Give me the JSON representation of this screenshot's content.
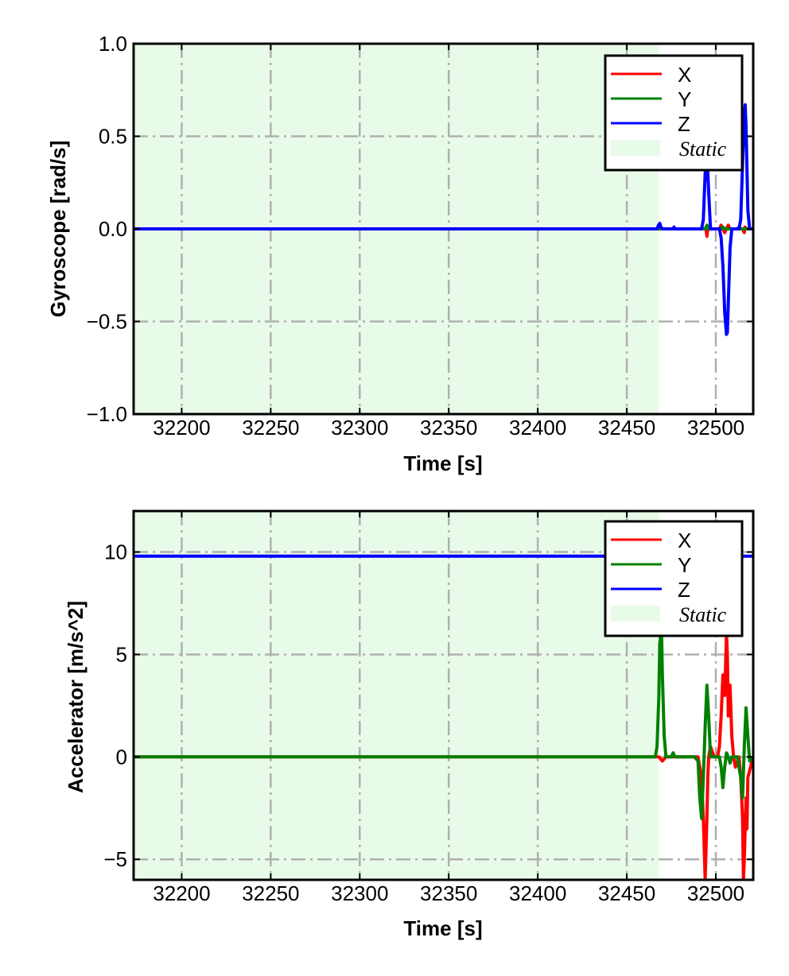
{
  "colors": {
    "x": "#ff0000",
    "y": "#008000",
    "z": "#0000ff",
    "static": "#e8fbe8",
    "grid": "#b0b0b0"
  },
  "legend": {
    "x": "X",
    "y": "Y",
    "z": "Z",
    "static": "Static",
    "placement": "top-right"
  },
  "chart_data": [
    {
      "type": "line",
      "xlabel": "Time [s]",
      "ylabel": "Gyroscope [rad/s]",
      "xlim": [
        32173,
        32521
      ],
      "ylim": [
        -1.0,
        1.0
      ],
      "xticks": [
        32200,
        32250,
        32300,
        32350,
        32400,
        32450,
        32500
      ],
      "xtick_labels": [
        "32200",
        "32250",
        "32300",
        "32350",
        "32400",
        "32450",
        "32500"
      ],
      "yticks": [
        -1.0,
        -0.5,
        0.0,
        0.5,
        1.0
      ],
      "ytick_labels": [
        "−1.0",
        "−0.5",
        "0.0",
        "0.5",
        "1.0"
      ],
      "grid": true,
      "static_region": [
        32173,
        32468
      ],
      "series": [
        {
          "name": "X",
          "x": [
            32173,
            32468,
            32470,
            32494.5,
            32495,
            32495.5,
            32496,
            32502,
            32503,
            32504,
            32505,
            32506,
            32507,
            32508,
            32515,
            32516,
            32516.5,
            32517,
            32521
          ],
          "y": [
            0.0,
            0.0,
            0.0,
            0.0,
            -0.04,
            0.0,
            0.0,
            0.0,
            0.02,
            0.0,
            -0.02,
            0.0,
            0.02,
            0.0,
            0.0,
            -0.02,
            0.01,
            0.0,
            0.0
          ]
        },
        {
          "name": "Y",
          "x": [
            32173,
            32468,
            32494,
            32495,
            32496,
            32503,
            32504,
            32505,
            32512,
            32513,
            32514,
            32521
          ],
          "y": [
            0.0,
            0.0,
            0.0,
            0.02,
            0.0,
            0.0,
            0.01,
            0.0,
            0.0,
            0.01,
            0.0,
            0.0
          ]
        },
        {
          "name": "Z",
          "x": [
            32173,
            32467,
            32467.8,
            32468.5,
            32469.2,
            32470,
            32476,
            32476.5,
            32477,
            32492,
            32493,
            32494,
            32495,
            32496,
            32497,
            32498,
            32502,
            32503,
            32504,
            32505,
            32506,
            32506.5,
            32507,
            32508,
            32509,
            32510,
            32513,
            32514,
            32515,
            32516,
            32516.5,
            32517,
            32518,
            32519,
            32521
          ],
          "y": [
            0.0,
            0.0,
            0.02,
            0.03,
            0.01,
            0.0,
            0.0,
            0.01,
            0.0,
            0.0,
            0.05,
            0.3,
            0.42,
            0.2,
            0.0,
            0.0,
            0.0,
            -0.05,
            -0.2,
            -0.45,
            -0.57,
            -0.56,
            -0.4,
            -0.1,
            0.0,
            0.0,
            0.0,
            0.05,
            0.35,
            0.6,
            0.67,
            0.55,
            0.1,
            0.0,
            0.0
          ]
        }
      ]
    },
    {
      "type": "line",
      "xlabel": "Time [s]",
      "ylabel": "Accelerator [m/s^2]",
      "xlim": [
        32173,
        32521
      ],
      "ylim": [
        -6.0,
        12.0
      ],
      "xticks": [
        32200,
        32250,
        32300,
        32350,
        32400,
        32450,
        32500
      ],
      "xtick_labels": [
        "32200",
        "32250",
        "32300",
        "32350",
        "32400",
        "32450",
        "32500"
      ],
      "yticks": [
        -5,
        0,
        5,
        10
      ],
      "ytick_labels": [
        "−5",
        "0",
        "5",
        "10"
      ],
      "grid": true,
      "static_region": [
        32173,
        32468
      ],
      "series": [
        {
          "name": "X",
          "x": [
            32173,
            32468,
            32470,
            32472,
            32490,
            32492,
            32493,
            32494,
            32495,
            32495.5,
            32496,
            32497,
            32499,
            32501,
            32502,
            32503,
            32504,
            32505,
            32506,
            32506.5,
            32507,
            32508,
            32509,
            32510,
            32511,
            32513,
            32514,
            32515,
            32515.5,
            32516,
            32517,
            32517.5,
            32518,
            32521
          ],
          "y": [
            0.0,
            0.0,
            -0.2,
            0.0,
            0.0,
            -1.0,
            -3.0,
            -6.0,
            -3.0,
            -1.0,
            0.0,
            0.5,
            0.0,
            0.0,
            0.5,
            2.0,
            4.0,
            3.0,
            6.0,
            5.0,
            2.0,
            3.5,
            1.0,
            0.0,
            -0.5,
            0.0,
            -1.0,
            -3.0,
            -6.0,
            -5.0,
            -2.0,
            -3.5,
            -1.0,
            0.0
          ]
        },
        {
          "name": "Y",
          "x": [
            32173,
            32466,
            32467,
            32468,
            32468.5,
            32469.5,
            32470,
            32471,
            32472,
            32475,
            32476,
            32477,
            32480,
            32488,
            32490,
            32491,
            32492,
            32493,
            32494,
            32495,
            32496,
            32497,
            32500,
            32502,
            32503,
            32504,
            32505,
            32506,
            32507,
            32508,
            32509,
            32512,
            32513,
            32514,
            32515,
            32516,
            32517,
            32518,
            32519,
            32521
          ],
          "y": [
            0.0,
            0.0,
            0.5,
            3.0,
            5.5,
            6.3,
            4.0,
            1.0,
            0.0,
            0.0,
            0.2,
            0.0,
            0.0,
            0.0,
            -0.2,
            -2.0,
            -3.0,
            -1.0,
            1.5,
            3.5,
            2.0,
            0.0,
            0.0,
            0.0,
            -0.5,
            -1.5,
            -0.5,
            0.2,
            0.0,
            -0.3,
            0.0,
            0.0,
            -0.5,
            -1.0,
            -2.0,
            0.5,
            2.4,
            1.0,
            -0.2,
            0.0
          ]
        },
        {
          "name": "Z",
          "x": [
            32173,
            32468,
            32469,
            32470,
            32500,
            32521
          ],
          "y": [
            9.8,
            9.8,
            9.8,
            9.8,
            9.8,
            9.8
          ]
        }
      ]
    }
  ]
}
